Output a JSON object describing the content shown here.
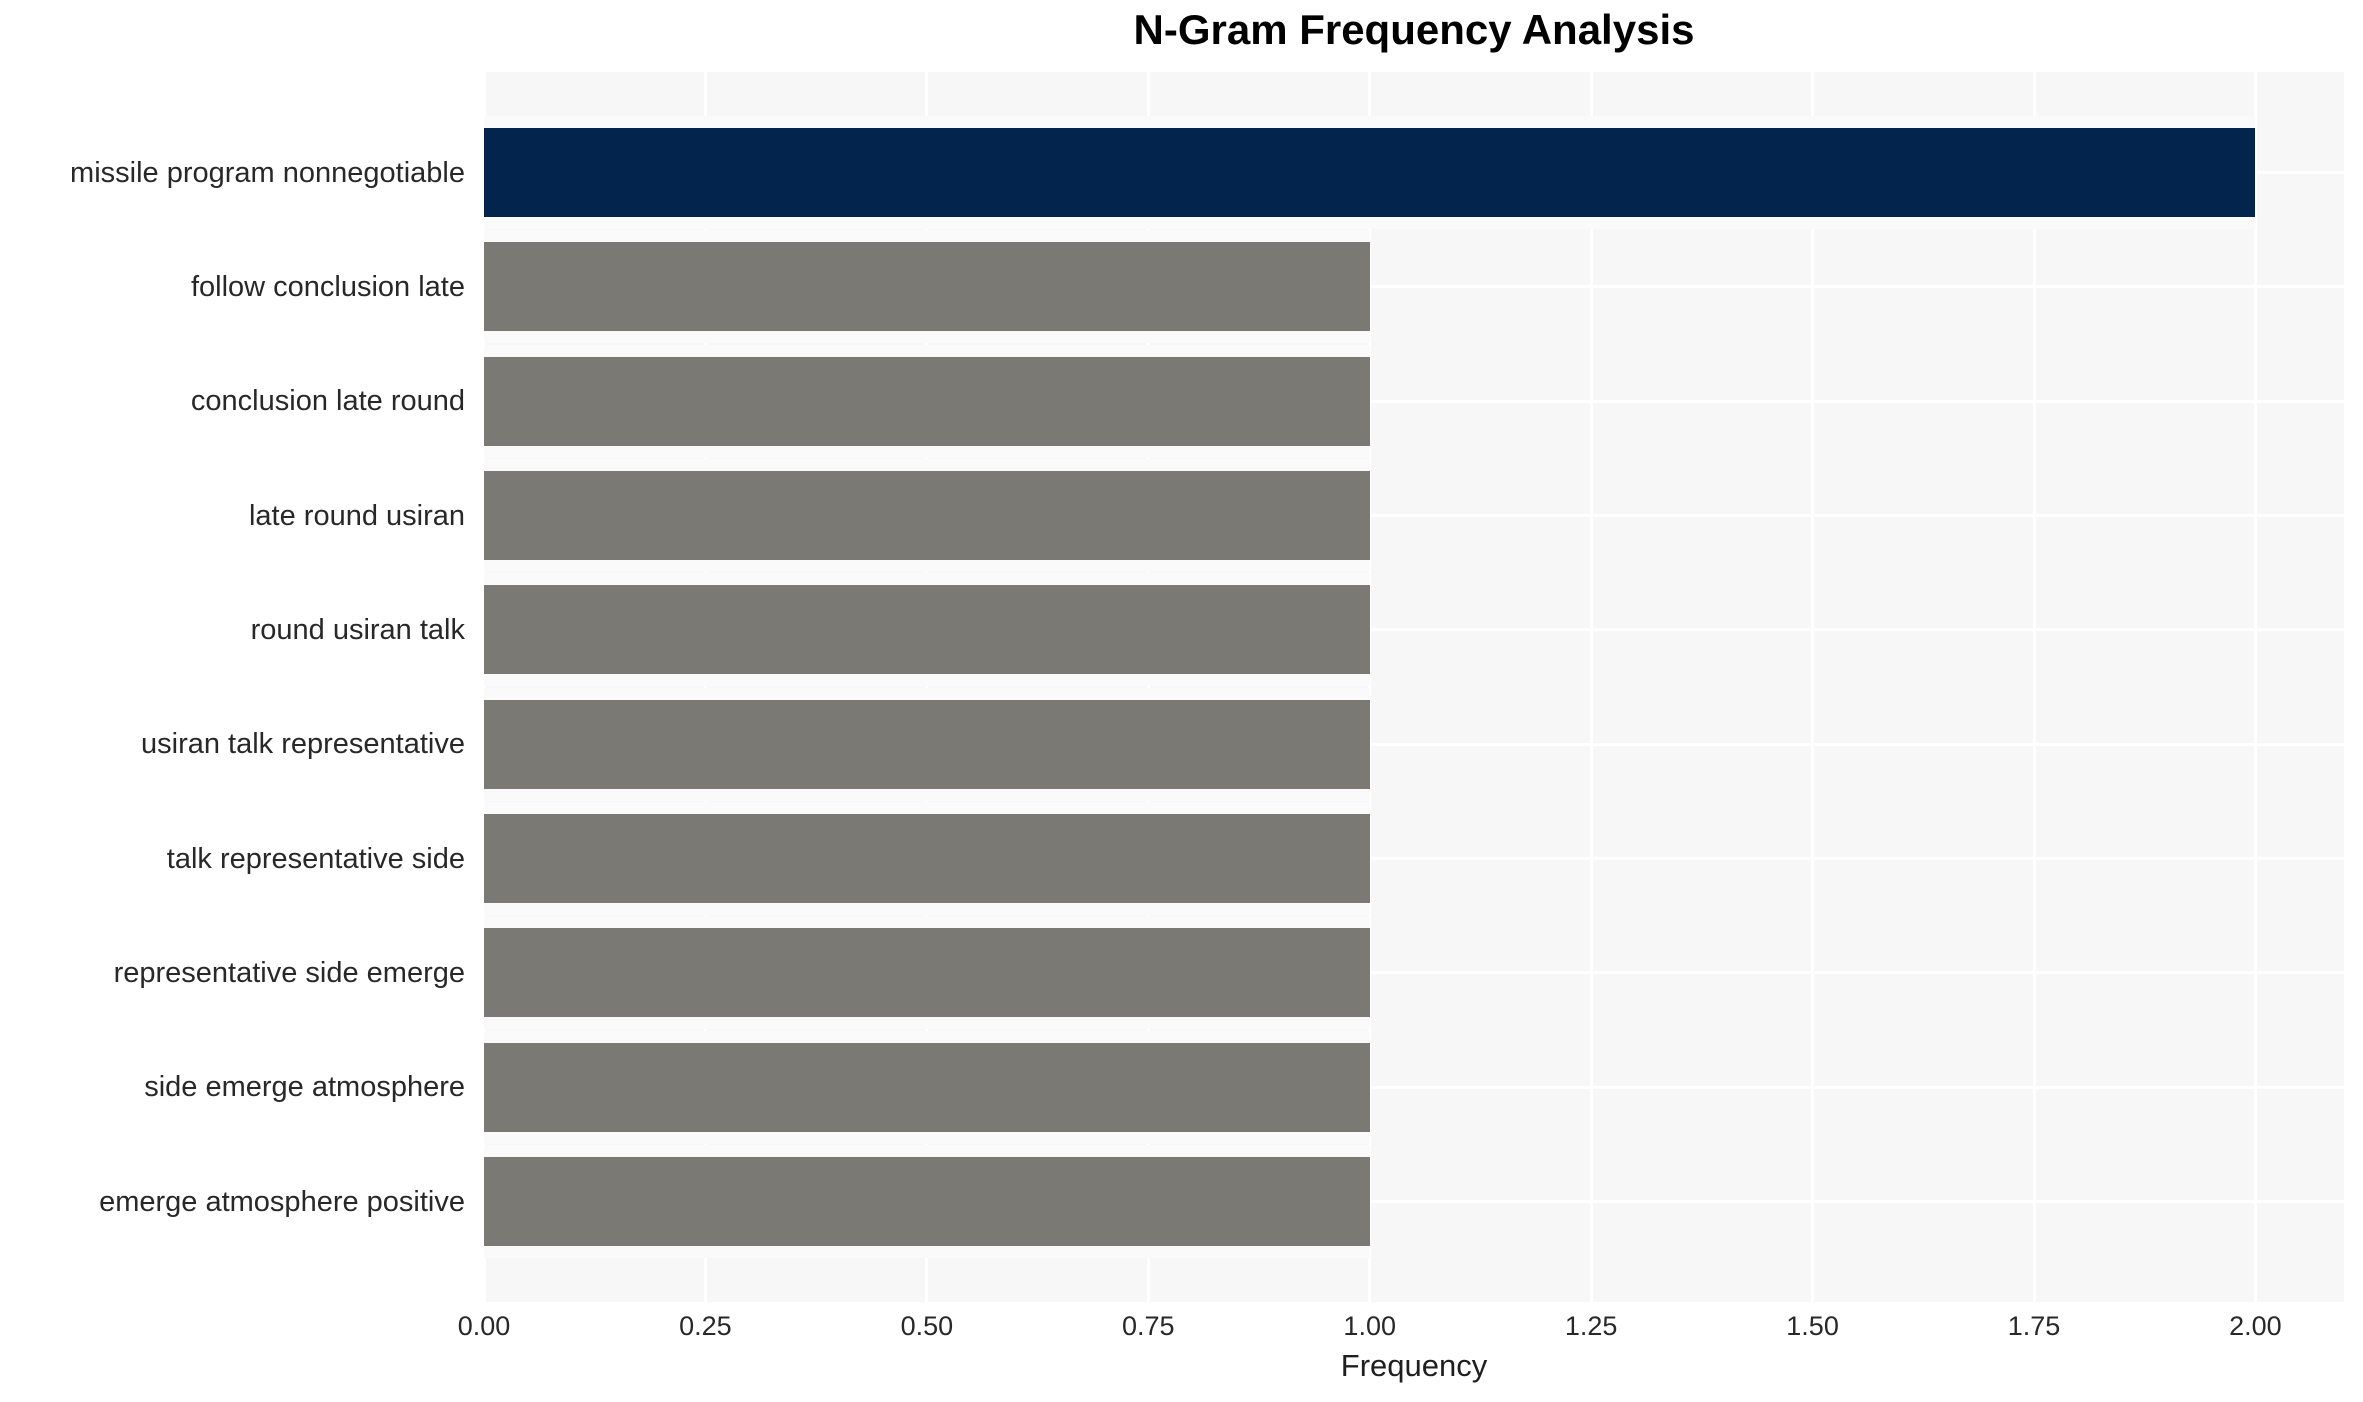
{
  "chart_data": {
    "type": "bar",
    "orientation": "horizontal",
    "title": "N-Gram Frequency Analysis",
    "xlabel": "Frequency",
    "ylabel": "",
    "categories": [
      "missile program nonnegotiable",
      "follow conclusion late",
      "conclusion late round",
      "late round usiran",
      "round usiran talk",
      "usiran talk representative",
      "talk representative side",
      "representative side emerge",
      "side emerge atmosphere",
      "emerge atmosphere positive"
    ],
    "values": [
      2,
      1,
      1,
      1,
      1,
      1,
      1,
      1,
      1,
      1
    ],
    "bar_colors": [
      "#03244d",
      "#7b7974",
      "#7b7974",
      "#7b7974",
      "#7b7974",
      "#7b7974",
      "#7b7974",
      "#7b7974",
      "#7b7974",
      "#7b7974"
    ],
    "xticks": [
      {
        "value": 0.0,
        "label": "0.00"
      },
      {
        "value": 0.25,
        "label": "0.25"
      },
      {
        "value": 0.5,
        "label": "0.50"
      },
      {
        "value": 0.75,
        "label": "0.75"
      },
      {
        "value": 1.0,
        "label": "1.00"
      },
      {
        "value": 1.25,
        "label": "1.25"
      },
      {
        "value": 1.5,
        "label": "1.50"
      },
      {
        "value": 1.75,
        "label": "1.75"
      },
      {
        "value": 2.0,
        "label": "2.00"
      }
    ],
    "xlim": [
      0,
      2.1
    ],
    "grid": true,
    "legend": false,
    "colors": {
      "highlight_bar": "#03244d",
      "default_bar": "#7b7974",
      "plot_background": "#f7f7f7",
      "gridline": "#ffffff",
      "bar_halo": "#fafafa",
      "text": "#282828",
      "title_text": "#000000"
    }
  }
}
